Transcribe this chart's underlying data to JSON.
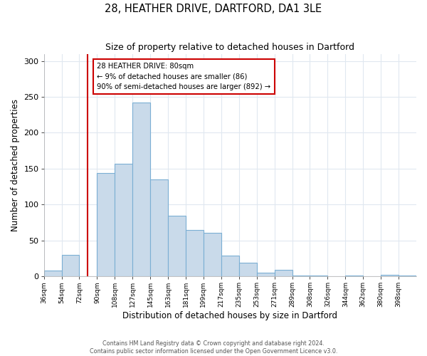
{
  "title": "28, HEATHER DRIVE, DARTFORD, DA1 3LE",
  "subtitle": "Size of property relative to detached houses in Dartford",
  "xlabel": "Distribution of detached houses by size in Dartford",
  "ylabel": "Number of detached properties",
  "bin_labels": [
    "36sqm",
    "54sqm",
    "72sqm",
    "90sqm",
    "108sqm",
    "127sqm",
    "145sqm",
    "163sqm",
    "181sqm",
    "199sqm",
    "217sqm",
    "235sqm",
    "253sqm",
    "271sqm",
    "289sqm",
    "308sqm",
    "326sqm",
    "344sqm",
    "362sqm",
    "380sqm",
    "398sqm"
  ],
  "bar_heights": [
    8,
    30,
    0,
    144,
    157,
    242,
    135,
    84,
    65,
    61,
    29,
    19,
    5,
    9,
    1,
    1,
    0,
    1,
    0,
    2,
    1
  ],
  "bar_color": "#c9daea",
  "bar_edge_color": "#7bafd4",
  "vline_x": 2,
  "vline_color": "#cc0000",
  "annotation_text": "28 HEATHER DRIVE: 80sqm\n← 9% of detached houses are smaller (86)\n90% of semi-detached houses are larger (892) →",
  "annotation_box_color": "#ffffff",
  "annotation_box_edge": "#cc0000",
  "ylim": [
    0,
    310
  ],
  "yticks": [
    0,
    50,
    100,
    150,
    200,
    250,
    300
  ],
  "footer_line1": "Contains HM Land Registry data © Crown copyright and database right 2024.",
  "footer_line2": "Contains public sector information licensed under the Open Government Licence v3.0.",
  "bg_color": "#ffffff",
  "plot_bg_color": "#ffffff",
  "grid_color": "#e0e8f0",
  "n_bins": 21
}
